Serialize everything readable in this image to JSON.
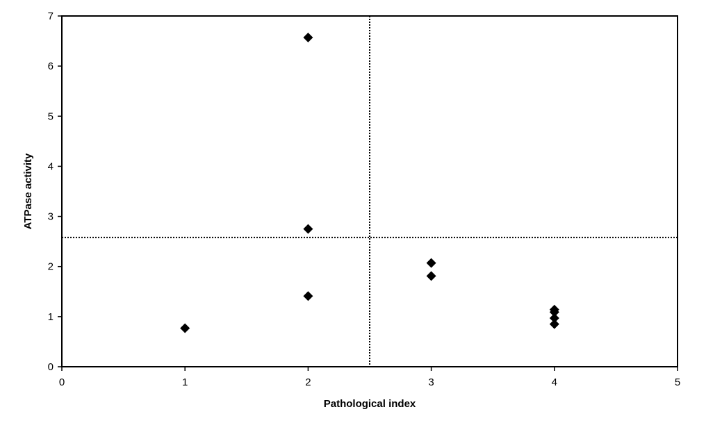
{
  "chart_data": {
    "type": "scatter",
    "title": "",
    "xlabel": "Pathological index",
    "ylabel": "ATPase activity",
    "xlim": [
      0,
      5
    ],
    "ylim": [
      0,
      7
    ],
    "x_ticks": [
      0,
      1,
      2,
      3,
      4,
      5
    ],
    "y_ticks": [
      0,
      1,
      2,
      3,
      4,
      5,
      6,
      7
    ],
    "grid": false,
    "legend": "none",
    "marker": "diamond",
    "marker_color": "#000000",
    "points": [
      {
        "x": 1,
        "y": 0.77
      },
      {
        "x": 2,
        "y": 6.57
      },
      {
        "x": 2,
        "y": 2.75
      },
      {
        "x": 2,
        "y": 1.41
      },
      {
        "x": 3,
        "y": 2.07
      },
      {
        "x": 3,
        "y": 1.81
      },
      {
        "x": 4,
        "y": 1.14
      },
      {
        "x": 4,
        "y": 1.09
      },
      {
        "x": 4,
        "y": 0.97
      },
      {
        "x": 4,
        "y": 0.85
      }
    ],
    "reference_lines": [
      {
        "orientation": "vertical",
        "value": 2.5,
        "style": "dotted"
      },
      {
        "orientation": "horizontal",
        "value": 2.58,
        "style": "dotted"
      }
    ]
  }
}
